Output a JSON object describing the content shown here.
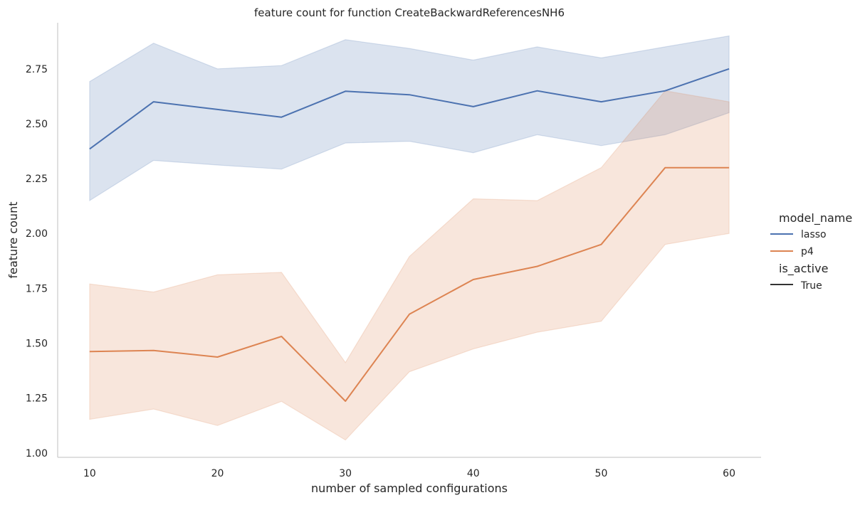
{
  "chart_data": {
    "type": "line",
    "title": "feature count for function CreateBackwardReferencesNH6",
    "xlabel": "number of sampled configurations",
    "ylabel": "feature count",
    "x": [
      10,
      15,
      20,
      25,
      30,
      35,
      40,
      45,
      50,
      55,
      60
    ],
    "x_ticks": [
      "10",
      "20",
      "30",
      "40",
      "50",
      "60"
    ],
    "y_ticks": [
      "1.00",
      "1.25",
      "1.50",
      "1.75",
      "2.00",
      "2.25",
      "2.50",
      "2.75"
    ],
    "xlim": [
      7.5,
      62.5
    ],
    "ylim": [
      0.98,
      2.96
    ],
    "grid": false,
    "legend_position": "right",
    "series": [
      {
        "name": "lasso",
        "color": "#4c72b0",
        "values": [
          2.385,
          2.6,
          2.565,
          2.53,
          2.648,
          2.632,
          2.578,
          2.65,
          2.6,
          2.65,
          2.75
        ],
        "ci_lower": [
          2.15,
          2.333,
          2.312,
          2.293,
          2.412,
          2.42,
          2.368,
          2.45,
          2.4,
          2.45,
          2.55
        ],
        "ci_upper": [
          2.692,
          2.867,
          2.75,
          2.765,
          2.883,
          2.843,
          2.79,
          2.85,
          2.8,
          2.85,
          2.9
        ]
      },
      {
        "name": "p4",
        "color": "#dd8452",
        "values": [
          1.462,
          1.467,
          1.437,
          1.531,
          1.236,
          1.632,
          1.79,
          1.85,
          1.95,
          2.3,
          2.3
        ],
        "ci_lower": [
          1.153,
          1.2,
          1.125,
          1.235,
          1.059,
          1.37,
          1.474,
          1.55,
          1.6,
          1.95,
          2.0
        ],
        "ci_upper": [
          1.77,
          1.733,
          1.812,
          1.823,
          1.412,
          1.895,
          2.158,
          2.15,
          2.3,
          2.65,
          2.6
        ]
      }
    ],
    "legend": {
      "hue_title": "model_name",
      "hue_entries": [
        "lasso",
        "p4"
      ],
      "style_title": "is_active",
      "style_entries": [
        "True"
      ]
    }
  }
}
